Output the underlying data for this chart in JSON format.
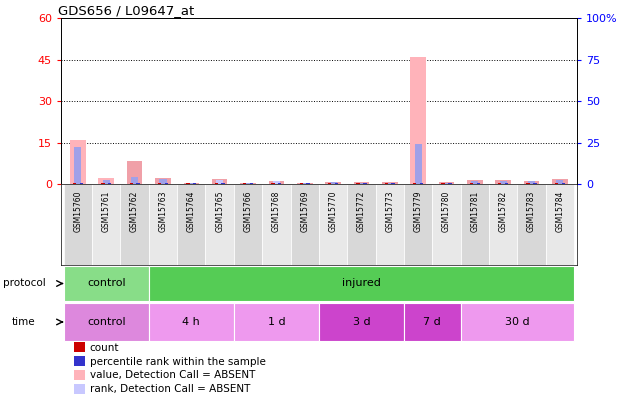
{
  "title": "GDS656 / L09647_at",
  "samples": [
    "GSM15760",
    "GSM15761",
    "GSM15762",
    "GSM15763",
    "GSM15764",
    "GSM15765",
    "GSM15766",
    "GSM15768",
    "GSM15769",
    "GSM15770",
    "GSM15772",
    "GSM15773",
    "GSM15779",
    "GSM15780",
    "GSM15781",
    "GSM15782",
    "GSM15783",
    "GSM15784"
  ],
  "value_bars": [
    16.0,
    2.2,
    8.5,
    2.2,
    0.5,
    2.0,
    0.5,
    1.2,
    0.5,
    1.0,
    0.8,
    0.8,
    46.0,
    0.8,
    1.5,
    1.5,
    1.2,
    2.0
  ],
  "rank_bars_pct": [
    22.5,
    2.5,
    4.2,
    3.0,
    0.7,
    2.7,
    0.7,
    1.7,
    0.7,
    1.3,
    1.0,
    1.0,
    24.2,
    1.0,
    2.0,
    2.0,
    1.7,
    2.5
  ],
  "count_vals": [
    0.5,
    0.4,
    0.4,
    0.4,
    0.3,
    0.4,
    0.3,
    0.4,
    0.3,
    0.3,
    0.3,
    0.3,
    0.5,
    0.3,
    0.4,
    0.4,
    0.4,
    0.4
  ],
  "prank_vals": [
    0.6,
    0.4,
    0.5,
    0.4,
    0.3,
    0.4,
    0.3,
    0.4,
    0.3,
    0.3,
    0.3,
    0.3,
    0.6,
    0.3,
    0.4,
    0.4,
    0.4,
    0.4
  ],
  "absent_value": [
    true,
    true,
    false,
    false,
    false,
    false,
    false,
    false,
    false,
    false,
    false,
    false,
    true,
    false,
    false,
    false,
    false,
    false
  ],
  "absent_rank": [
    false,
    false,
    false,
    false,
    false,
    true,
    false,
    true,
    false,
    false,
    false,
    false,
    false,
    false,
    false,
    false,
    false,
    false
  ],
  "ylim_left": [
    0,
    60
  ],
  "ylim_right": [
    0,
    100
  ],
  "yticks_left": [
    0,
    15,
    30,
    45,
    60
  ],
  "yticks_right": [
    0,
    25,
    50,
    75,
    100
  ],
  "ytick_labels_left": [
    "0",
    "15",
    "30",
    "45",
    "60"
  ],
  "ytick_labels_right": [
    "0",
    "25",
    "50",
    "75",
    "100%"
  ],
  "color_value_present": "#f0a0a8",
  "color_value_absent": "#ffb3ba",
  "color_rank_present": "#a0a0e8",
  "color_rank_absent": "#c8c8ff",
  "color_count": "#cc0000",
  "color_prank": "#3333cc",
  "protocol_groups": [
    {
      "label": "control",
      "color": "#88dd88",
      "start": 0,
      "end": 3
    },
    {
      "label": "injured",
      "color": "#55cc55",
      "start": 3,
      "end": 18
    }
  ],
  "time_groups": [
    {
      "label": "control",
      "color": "#dd88dd",
      "start": 0,
      "end": 3
    },
    {
      "label": "4 h",
      "color": "#ee99ee",
      "start": 3,
      "end": 6
    },
    {
      "label": "1 d",
      "color": "#ee99ee",
      "start": 6,
      "end": 9
    },
    {
      "label": "3 d",
      "color": "#cc44cc",
      "start": 9,
      "end": 12
    },
    {
      "label": "7 d",
      "color": "#cc44cc",
      "start": 12,
      "end": 14
    },
    {
      "label": "30 d",
      "color": "#ee99ee",
      "start": 14,
      "end": 18
    }
  ],
  "legend_items": [
    {
      "label": "count",
      "color": "#cc0000"
    },
    {
      "label": "percentile rank within the sample",
      "color": "#3333cc"
    },
    {
      "label": "value, Detection Call = ABSENT",
      "color": "#ffb3ba"
    },
    {
      "label": "rank, Detection Call = ABSENT",
      "color": "#c8c8ff"
    }
  ],
  "sample_bg_color": "#d8d8d8",
  "sample_bg_alt": "#e8e8e8"
}
